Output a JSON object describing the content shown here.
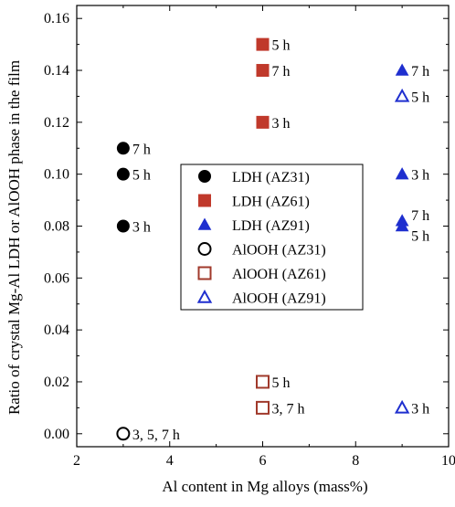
{
  "chart_data": {
    "type": "scatter",
    "xlabel": "Al content in Mg alloys (mass%)",
    "ylabel": "Ratio of crystal Mg-Al LDH or AlOOH phase in the film",
    "xlim": [
      2,
      10
    ],
    "ylim": [
      -0.005,
      0.165
    ],
    "xticks": [
      "2",
      "4",
      "6",
      "8",
      "10"
    ],
    "yticks": [
      "0.00",
      "0.02",
      "0.04",
      "0.06",
      "0.08",
      "0.10",
      "0.12",
      "0.14",
      "0.16"
    ],
    "grid": false,
    "legend_position": "center",
    "series": [
      {
        "name": "LDH (AZ31)",
        "marker": "circle",
        "filled": true,
        "color": "#000000",
        "points": [
          {
            "x": 3,
            "y": 0.11,
            "label": "7 h"
          },
          {
            "x": 3,
            "y": 0.1,
            "label": "5 h"
          },
          {
            "x": 3,
            "y": 0.08,
            "label": "3 h"
          }
        ]
      },
      {
        "name": "LDH (AZ61)",
        "marker": "square",
        "filled": true,
        "color": "#c0392b",
        "points": [
          {
            "x": 6,
            "y": 0.15,
            "label": "5 h"
          },
          {
            "x": 6,
            "y": 0.14,
            "label": "7 h"
          },
          {
            "x": 6,
            "y": 0.12,
            "label": "3 h"
          }
        ]
      },
      {
        "name": "LDH (AZ91)",
        "marker": "triangle",
        "filled": true,
        "color": "#1f2fcf",
        "points": [
          {
            "x": 9,
            "y": 0.14,
            "label": "7 h"
          },
          {
            "x": 9,
            "y": 0.1,
            "label": "3 h"
          },
          {
            "x": 9,
            "y": 0.082,
            "label": "7 h"
          },
          {
            "x": 9,
            "y": 0.08,
            "label": "5 h"
          }
        ]
      },
      {
        "name": "AlOOH (AZ31)",
        "marker": "circle",
        "filled": false,
        "color": "#000000",
        "points": [
          {
            "x": 3,
            "y": 0.0,
            "label": "3, 5, 7 h"
          }
        ]
      },
      {
        "name": "AlOOH (AZ61)",
        "marker": "square",
        "filled": false,
        "color": "#a0392b",
        "points": [
          {
            "x": 6,
            "y": 0.02,
            "label": "5 h"
          },
          {
            "x": 6,
            "y": 0.01,
            "label": "3, 7 h"
          }
        ]
      },
      {
        "name": "AlOOH (AZ91)",
        "marker": "triangle",
        "filled": false,
        "color": "#1f2fcf",
        "points": [
          {
            "x": 9,
            "y": 0.13,
            "label": "5 h"
          },
          {
            "x": 9,
            "y": 0.01,
            "label": "3 h"
          }
        ]
      }
    ]
  }
}
